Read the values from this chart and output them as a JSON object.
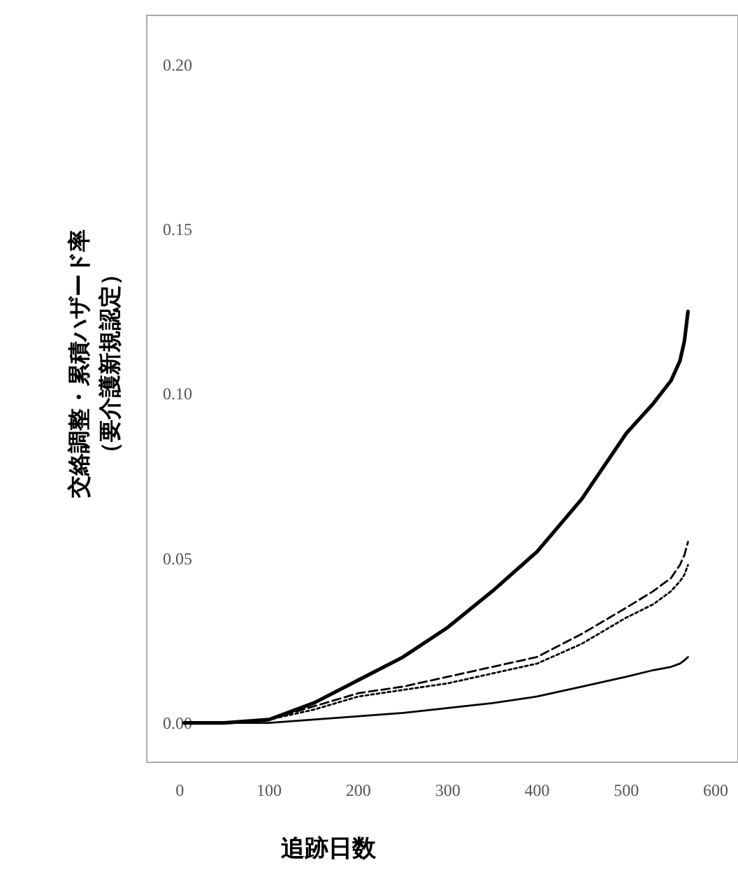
{
  "chart_data": {
    "type": "line",
    "xlabel": "追跡日数",
    "ylabel": "交絡調整・累積ハザード率（要介護新規認定）",
    "xlim": [
      -37,
      625
    ],
    "ylim": [
      -0.012,
      0.215
    ],
    "xticks": [
      0,
      100,
      200,
      300,
      400,
      500,
      600
    ],
    "yticks": [
      {
        "value": 0,
        "label": "0.00"
      },
      {
        "value": 0.05,
        "label": "0.05"
      },
      {
        "value": 0.1,
        "label": "0.10"
      },
      {
        "value": 0.15,
        "label": "0.15"
      },
      {
        "value": 0.2,
        "label": "0.20"
      }
    ],
    "grid": false,
    "marker": "none",
    "x": [
      5,
      50,
      100,
      150,
      200,
      250,
      300,
      350,
      400,
      450,
      500,
      530,
      550,
      560,
      565,
      569
    ],
    "series": [
      {
        "color": "#000000",
        "line_style": "solid",
        "values": [
          0,
          0,
          0.001,
          0.006,
          0.013,
          0.02,
          0.029,
          0.04,
          0.052,
          0.068,
          0.088,
          0.097,
          0.104,
          0.11,
          0.116,
          0.125
        ]
      },
      {
        "color": "#000000",
        "line_style": "dashed",
        "values": [
          0,
          0,
          0.001,
          0.005,
          0.009,
          0.011,
          0.014,
          0.017,
          0.02,
          0.027,
          0.035,
          0.04,
          0.044,
          0.048,
          0.051,
          0.055
        ]
      },
      {
        "color": "#000000",
        "line_style": "dotted",
        "values": [
          0,
          0,
          0.001,
          0.004,
          0.008,
          0.01,
          0.012,
          0.015,
          0.018,
          0.024,
          0.032,
          0.036,
          0.04,
          0.043,
          0.045,
          0.048
        ]
      },
      {
        "color": "#000000",
        "line_style": "solid",
        "values": [
          0,
          0,
          0,
          0.001,
          0.002,
          0.003,
          0.0045,
          0.006,
          0.008,
          0.011,
          0.014,
          0.016,
          0.017,
          0.018,
          0.019,
          0.02
        ]
      }
    ]
  }
}
